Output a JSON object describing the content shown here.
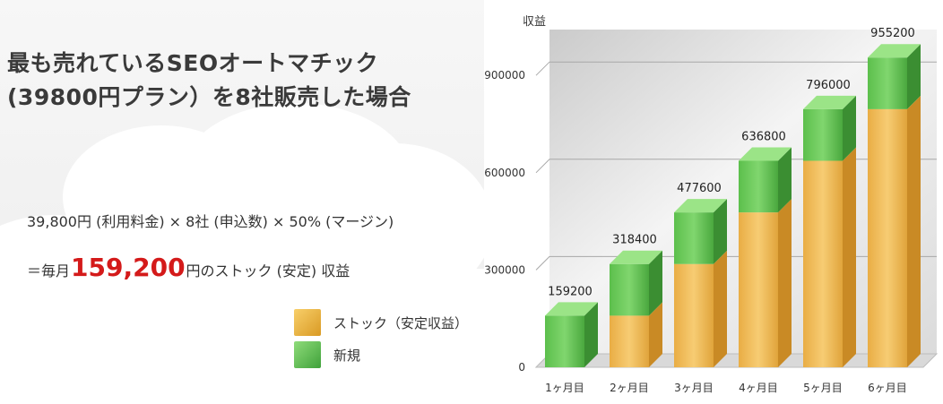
{
  "headline": {
    "line1": "最も売れているSEOオートマチック",
    "line2": "(39800円プラン）を8社販売した場合"
  },
  "formula": {
    "line1": "39,800円 (利用料金) × 8社 (申込数) × 50% (マージン)",
    "line2_prefix": "＝毎月",
    "line2_amount": "159,200",
    "line2_suffix": "円のストック (安定) 収益"
  },
  "colors": {
    "stock": "#e8b24a",
    "new": "#5dbb4f",
    "highlight": "#d41a1a"
  },
  "chart_data": {
    "type": "bar",
    "stacked": true,
    "ylabel": "収益",
    "ylim": [
      0,
      1000000
    ],
    "yticks": [
      0,
      300000,
      600000,
      900000
    ],
    "grid": true,
    "categories": [
      "1ヶ月目",
      "2ヶ月目",
      "3ヶ月目",
      "4ヶ月目",
      "5ヶ月目",
      "6ヶ月目"
    ],
    "series": [
      {
        "name": "ストック（安定収益）",
        "values": [
          0,
          159200,
          318400,
          477600,
          636800,
          796000
        ]
      },
      {
        "name": "新規",
        "values": [
          159200,
          159200,
          159200,
          159200,
          159200,
          159200
        ]
      }
    ],
    "totals": [
      159200,
      318400,
      477600,
      636800,
      796000,
      955200
    ]
  }
}
